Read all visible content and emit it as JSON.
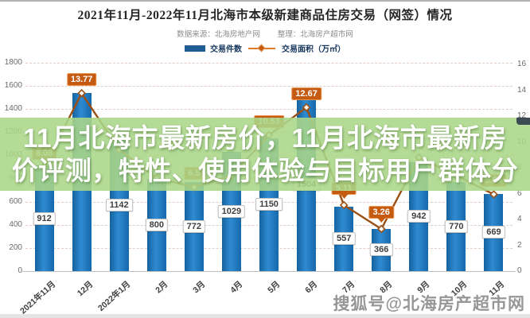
{
  "header": {
    "title": "2021年11月-2022年11月北海市本级新建商品住房交易（网签）情况",
    "source_note": "数据来源：北海房地产网",
    "editor_note": "整理：北海房产超市网"
  },
  "legend": {
    "bar_label": "交易件数",
    "line_label": "交易面积（万㎡）"
  },
  "overlay": {
    "line1": "11月北海市最新房价，11月北海市最新房",
    "line2": "价评测，特性、使用体验与目标用户群体分"
  },
  "watermark": "搜狐号@北海房产超市网",
  "chart_data": {
    "type": "combo",
    "title": "2021年11月-2022年11月北海市本级新建商品住房交易（网签）情况",
    "categories": [
      "2021年11月",
      "12月",
      "2022年1月",
      "2月",
      "3月",
      "4月",
      "5月",
      "6月",
      "7月",
      "8月",
      "9月",
      "10月",
      "11月"
    ],
    "series": [
      {
        "name": "交易件数",
        "type": "bar",
        "axis": "left",
        "values": [
          912,
          1540,
          1142,
          800,
          772,
          1029,
          1150,
          1504,
          557,
          366,
          942,
          770,
          669
        ],
        "label_visible": [
          true,
          false,
          true,
          true,
          true,
          true,
          true,
          true,
          true,
          true,
          true,
          true,
          true
        ],
        "estimated_indices": [
          1
        ]
      },
      {
        "name": "交易面积（万㎡）",
        "type": "line",
        "axis": "right",
        "values": [
          8.08,
          13.77,
          9.4,
          7.2,
          6.5,
          7.4,
          10.53,
          12.67,
          5.11,
          3.26,
          8.8,
          7.4,
          5.94
        ],
        "label_visible": [
          true,
          true,
          false,
          false,
          true,
          false,
          true,
          true,
          true,
          true,
          false,
          false,
          true
        ],
        "pointer_indices": [
          8,
          9
        ],
        "estimated_indices": [
          2,
          3,
          5,
          10,
          11
        ]
      }
    ],
    "left_axis": {
      "min": 0,
      "max": 1800,
      "step": 200
    },
    "right_axis": {
      "min": 0,
      "max": 16,
      "step": 2
    },
    "grid": true,
    "legend_position": "top",
    "colors": {
      "bar": "#1a6fba",
      "line": "#9a5014",
      "line_chip_bg": "#c55a11",
      "line_chip_border": "#e8924e",
      "overlay_green": "#abd789"
    }
  }
}
